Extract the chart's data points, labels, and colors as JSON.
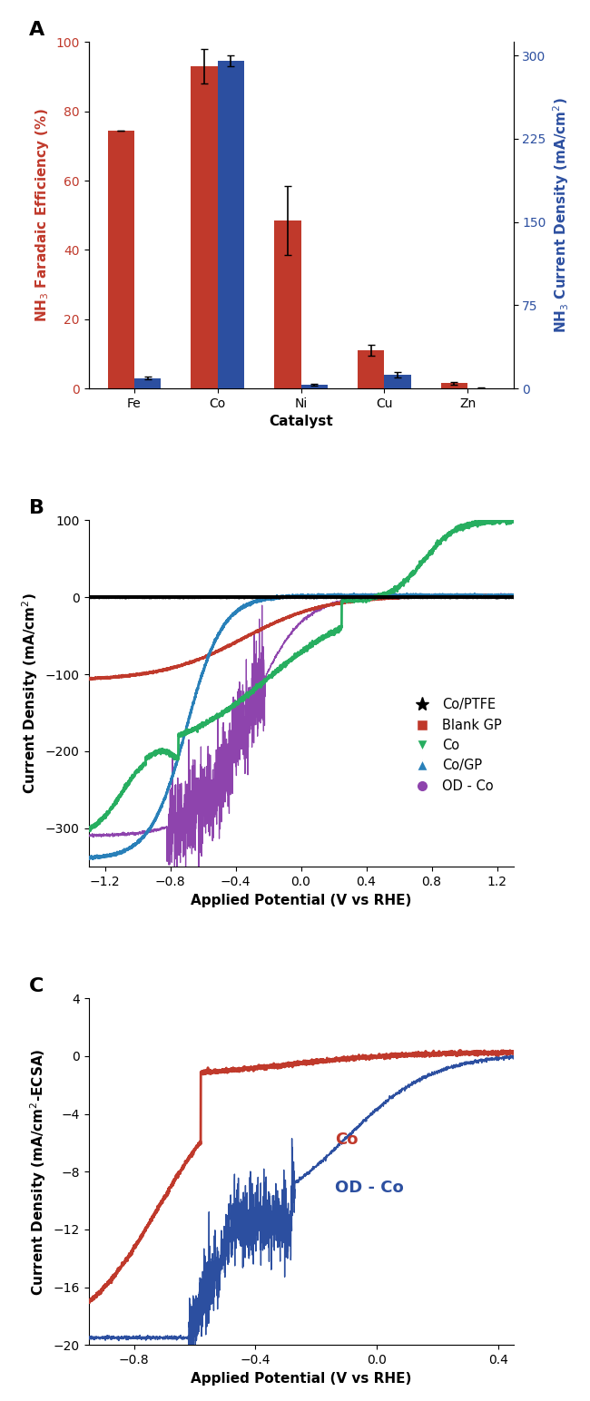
{
  "panel_A": {
    "catalysts": [
      "Fe",
      "Co",
      "Ni",
      "Cu",
      "Zn"
    ],
    "FE_values": [
      74.5,
      93.0,
      48.5,
      11.0,
      1.5
    ],
    "FE_errors": [
      0.0,
      5.0,
      10.0,
      1.5,
      0.3
    ],
    "CD_values": [
      9.5,
      295.0,
      3.5,
      12.5,
      0.5
    ],
    "CD_errors": [
      1.0,
      5.0,
      0.5,
      2.5,
      0.2
    ],
    "bar_color_FE": "#c0392b",
    "bar_color_CD": "#2c4fa0",
    "ylabel_left": "NH$_3$ Faradaic Efficiency (%)",
    "ylabel_right": "NH$_3$ Current Density (mA/cm$^2$)",
    "xlabel": "Catalyst",
    "ylim_left": [
      0,
      100
    ],
    "ylim_right": [
      0,
      312
    ],
    "yticks_left": [
      0,
      20,
      40,
      60,
      80,
      100
    ],
    "yticks_right": [
      0,
      75,
      150,
      225,
      300
    ]
  },
  "panel_B": {
    "xlabel": "Applied Potential (V vs RHE)",
    "ylabel": "Current Density (mA/cm$^2$)",
    "ylim": [
      -350,
      100
    ],
    "xlim": [
      -1.3,
      1.3
    ],
    "yticks": [
      -300,
      -200,
      -100,
      0,
      100
    ],
    "xticks": [
      -1.2,
      -0.8,
      -0.4,
      0.0,
      0.4,
      0.8,
      1.2
    ]
  },
  "panel_C": {
    "xlabel": "Applied Potential (V vs RHE)",
    "ylabel": "Current Density (mA/cm$^2$-ECSA)",
    "ylim": [
      -20,
      4
    ],
    "xlim": [
      -0.95,
      0.45
    ],
    "yticks": [
      -20,
      -16,
      -12,
      -8,
      -4,
      0,
      4
    ],
    "xticks": [
      -0.8,
      -0.4,
      0.0,
      0.4
    ],
    "label_Co": "Co",
    "label_ODCo": "OD - Co",
    "color_Co": "#c0392b",
    "color_ODCo": "#2c4fa0"
  },
  "label_fontsize": 11,
  "tick_fontsize": 10,
  "panel_label_fontsize": 16
}
